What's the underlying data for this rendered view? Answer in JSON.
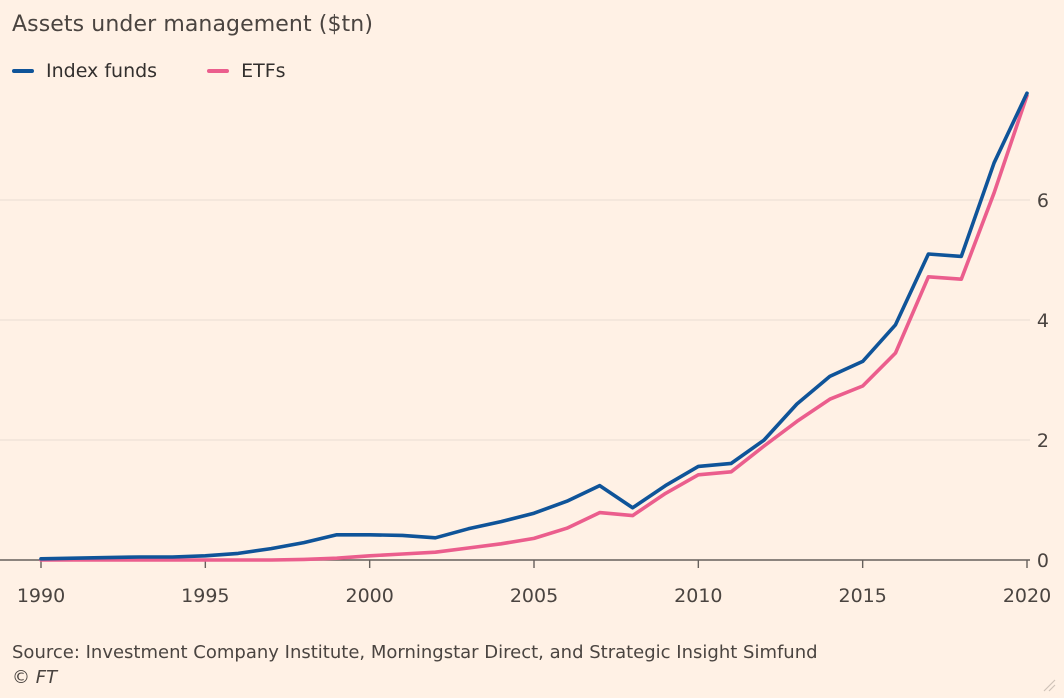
{
  "chart_data": {
    "type": "line",
    "title": "Assets under management ($tn)",
    "xlabel": "",
    "ylabel": "",
    "xlim": [
      1990,
      2020
    ],
    "ylim": [
      0,
      7.8
    ],
    "x": [
      1990,
      1991,
      1992,
      1993,
      1994,
      1995,
      1996,
      1997,
      1998,
      1999,
      2000,
      2001,
      2002,
      2003,
      2004,
      2005,
      2006,
      2007,
      2008,
      2009,
      2010,
      2011,
      2012,
      2013,
      2014,
      2015,
      2016,
      2017,
      2018,
      2019,
      2020
    ],
    "x_ticks": [
      1990,
      1995,
      2000,
      2005,
      2010,
      2015,
      2020
    ],
    "y_ticks": [
      0,
      2,
      4,
      6
    ],
    "grid": true,
    "legend_position": "top-left",
    "series": [
      {
        "name": "Index funds",
        "color": "#0f5499",
        "values": [
          0.02,
          0.03,
          0.04,
          0.05,
          0.05,
          0.07,
          0.11,
          0.19,
          0.29,
          0.42,
          0.42,
          0.41,
          0.37,
          0.52,
          0.64,
          0.78,
          0.98,
          1.24,
          0.87,
          1.24,
          1.56,
          1.61,
          2.0,
          2.6,
          3.06,
          3.31,
          3.92,
          5.1,
          5.06,
          6.62,
          7.78
        ]
      },
      {
        "name": "ETFs",
        "color": "#eb5e8d",
        "values": [
          0.0,
          0.0,
          0.0,
          0.0,
          0.0,
          0.0,
          0.0,
          0.0,
          0.01,
          0.03,
          0.07,
          0.1,
          0.13,
          0.2,
          0.27,
          0.36,
          0.53,
          0.79,
          0.74,
          1.11,
          1.42,
          1.47,
          1.9,
          2.31,
          2.68,
          2.9,
          3.45,
          4.72,
          4.68,
          6.12,
          7.74
        ]
      }
    ]
  },
  "source": "Source: Investment Company Institute, Morningstar Direct, and Strategic Insight Simfund",
  "credit": "© FT"
}
